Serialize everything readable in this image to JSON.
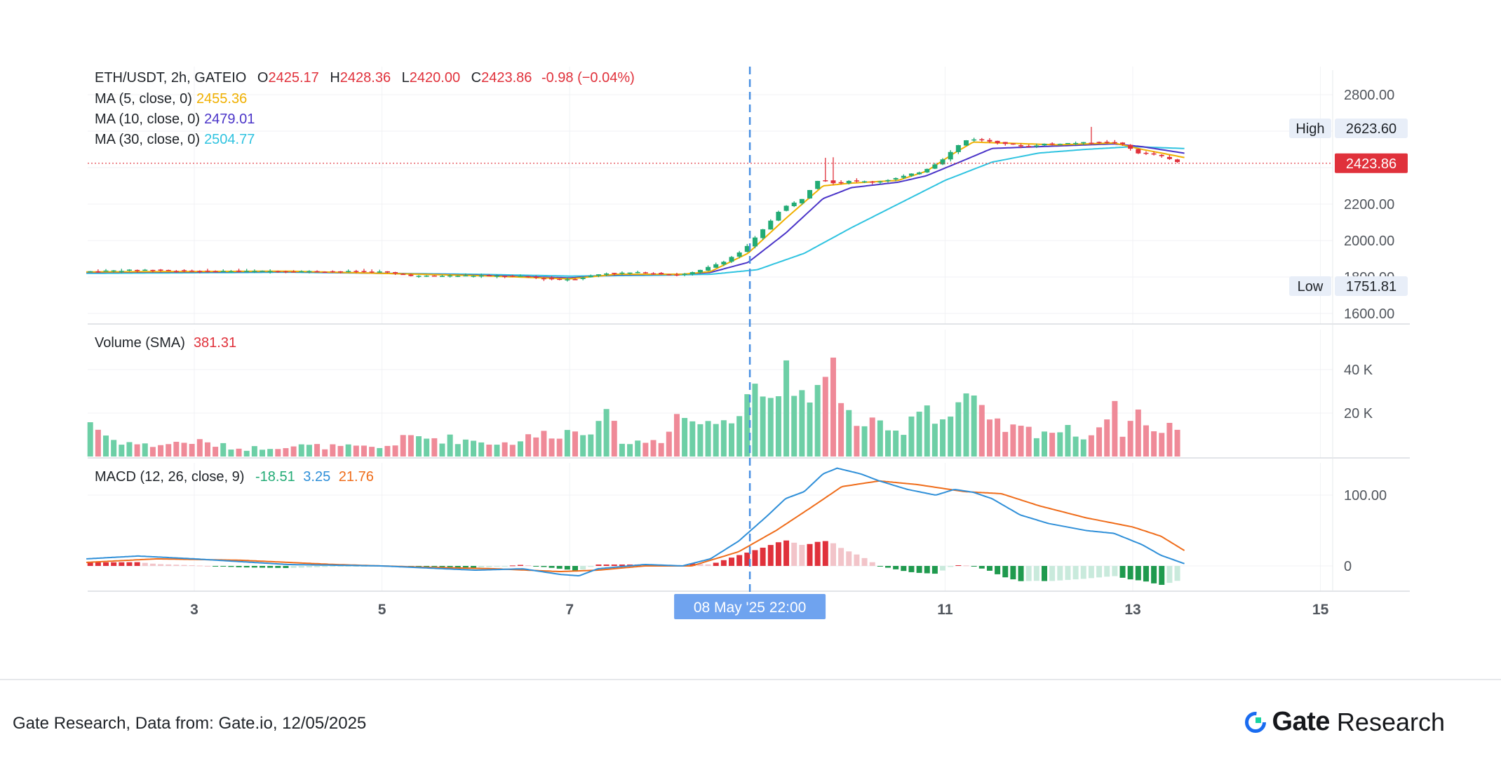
{
  "legend": {
    "symbol": "ETH/USDT, 2h, GATEIO",
    "open": "2425.17",
    "high": "2428.36",
    "low": "2420.00",
    "close": "2423.86",
    "change": "-0.98 (−0.04%)",
    "ma5_label": "MA (5, close, 0)",
    "ma5_value": "2455.36",
    "ma10_label": "MA (10, close, 0)",
    "ma10_value": "2479.01",
    "ma30_label": "MA (30, close, 0)",
    "ma30_value": "2504.77",
    "volume_label": "Volume (SMA)",
    "volume_value": "381.31",
    "macd_label": "MACD (12, 26, close, 9)",
    "macd_hist": "-18.51",
    "macd_line": "3.25",
    "macd_signal": "21.76"
  },
  "price_axis": {
    "ticks": [
      "2800.00",
      "2200.00",
      "2000.00",
      "1800.00",
      "1600.00"
    ],
    "high_label": "High",
    "high_value": "2623.60",
    "low_label": "Low",
    "low_value": "1751.81",
    "last_price": "2423.86"
  },
  "volume_axis": {
    "ticks": [
      "40 K",
      "20 K"
    ]
  },
  "macd_axis": {
    "ticks": [
      "100.00",
      "0"
    ]
  },
  "time_axis": {
    "ticks": [
      "3",
      "5",
      "7",
      "11",
      "13",
      "15"
    ],
    "crosshair_label": "08 May '25   22:00"
  },
  "footer": {
    "source": "Gate Research, Data from: Gate.io, 12/05/2025",
    "brand_name": "Gate",
    "brand_sub": "Research"
  },
  "colors": {
    "up": "#22ab75",
    "down": "#e0313b",
    "up_light": "#6dcfa6",
    "down_light": "#ef8a98",
    "ma5": "#f0b000",
    "ma10": "#4a34c8",
    "ma30": "#2fc3e0",
    "macd": "#2f8fd8",
    "signal": "#ef6c1a",
    "crosshair": "#4a90e2",
    "brand": "#1a6cf0"
  },
  "chart_data": {
    "type": "candlestick",
    "title": "ETH/USDT, 2h, GATEIO",
    "ylim": [
      1550,
      2900
    ],
    "x_range": [
      1.85,
      15.4
    ],
    "x_ticks": [
      3,
      5,
      7,
      11,
      13,
      15
    ],
    "crosshair_x": 8.92,
    "price_anchors": [
      [
        1.85,
        1830
      ],
      [
        2.5,
        1840
      ],
      [
        3.0,
        1832
      ],
      [
        4.0,
        1832
      ],
      [
        5.0,
        1830
      ],
      [
        5.4,
        1805
      ],
      [
        6.0,
        1808
      ],
      [
        6.5,
        1805
      ],
      [
        6.9,
        1785
      ],
      [
        7.1,
        1790
      ],
      [
        7.4,
        1820
      ],
      [
        7.8,
        1825
      ],
      [
        8.2,
        1810
      ],
      [
        8.4,
        1830
      ],
      [
        8.7,
        1890
      ],
      [
        8.9,
        1950
      ],
      [
        9.1,
        2060
      ],
      [
        9.3,
        2180
      ],
      [
        9.5,
        2220
      ],
      [
        9.6,
        2280
      ],
      [
        9.7,
        2340
      ],
      [
        9.9,
        2310
      ],
      [
        10.0,
        2330
      ],
      [
        10.3,
        2320
      ],
      [
        10.5,
        2340
      ],
      [
        10.8,
        2380
      ],
      [
        11.0,
        2440
      ],
      [
        11.2,
        2530
      ],
      [
        11.3,
        2560
      ],
      [
        11.5,
        2545
      ],
      [
        11.7,
        2530
      ],
      [
        11.9,
        2515
      ],
      [
        12.1,
        2530
      ],
      [
        12.4,
        2535
      ],
      [
        12.7,
        2540
      ],
      [
        12.9,
        2535
      ],
      [
        13.1,
        2480
      ],
      [
        13.3,
        2470
      ],
      [
        13.55,
        2423.86
      ]
    ],
    "ma5_anchors": [
      [
        1.85,
        1828
      ],
      [
        4.0,
        1832
      ],
      [
        6.0,
        1808
      ],
      [
        7.0,
        1790
      ],
      [
        7.5,
        1815
      ],
      [
        8.2,
        1815
      ],
      [
        8.5,
        1830
      ],
      [
        8.9,
        1930
      ],
      [
        9.3,
        2120
      ],
      [
        9.7,
        2300
      ],
      [
        10.0,
        2315
      ],
      [
        10.5,
        2330
      ],
      [
        10.8,
        2380
      ],
      [
        11.1,
        2480
      ],
      [
        11.3,
        2540
      ],
      [
        11.6,
        2535
      ],
      [
        12.2,
        2525
      ],
      [
        12.8,
        2535
      ],
      [
        13.1,
        2500
      ],
      [
        13.55,
        2455.36
      ]
    ],
    "ma10_anchors": [
      [
        1.85,
        1826
      ],
      [
        4.0,
        1830
      ],
      [
        6.0,
        1810
      ],
      [
        7.0,
        1795
      ],
      [
        7.5,
        1812
      ],
      [
        8.2,
        1815
      ],
      [
        8.5,
        1825
      ],
      [
        8.9,
        1880
      ],
      [
        9.3,
        2040
      ],
      [
        9.7,
        2230
      ],
      [
        10.0,
        2290
      ],
      [
        10.5,
        2320
      ],
      [
        10.8,
        2355
      ],
      [
        11.2,
        2440
      ],
      [
        11.5,
        2505
      ],
      [
        12.0,
        2515
      ],
      [
        12.8,
        2530
      ],
      [
        13.1,
        2515
      ],
      [
        13.55,
        2479.01
      ]
    ],
    "ma30_anchors": [
      [
        1.85,
        1820
      ],
      [
        4.0,
        1826
      ],
      [
        6.0,
        1815
      ],
      [
        7.0,
        1805
      ],
      [
        8.0,
        1810
      ],
      [
        8.5,
        1815
      ],
      [
        9.0,
        1840
      ],
      [
        9.5,
        1930
      ],
      [
        10.0,
        2070
      ],
      [
        10.5,
        2200
      ],
      [
        11.0,
        2330
      ],
      [
        11.5,
        2430
      ],
      [
        12.0,
        2480
      ],
      [
        12.5,
        2500
      ],
      [
        13.0,
        2515
      ],
      [
        13.55,
        2504.77
      ]
    ],
    "volume_anchors": [
      [
        1.85,
        18000
      ],
      [
        2.1,
        8000
      ],
      [
        2.5,
        5000
      ],
      [
        3.0,
        7000
      ],
      [
        3.5,
        3500
      ],
      [
        4.0,
        5000
      ],
      [
        4.5,
        4500
      ],
      [
        5.0,
        4000
      ],
      [
        5.3,
        9000
      ],
      [
        5.8,
        8000
      ],
      [
        6.3,
        6000
      ],
      [
        6.8,
        11000
      ],
      [
        7.2,
        12000
      ],
      [
        7.3,
        22000
      ],
      [
        7.6,
        6000
      ],
      [
        8.0,
        8000
      ],
      [
        8.1,
        20000
      ],
      [
        8.5,
        14000
      ],
      [
        8.8,
        24000
      ],
      [
        8.95,
        38000
      ],
      [
        9.1,
        22000
      ],
      [
        9.25,
        43000
      ],
      [
        9.4,
        22000
      ],
      [
        9.65,
        32000
      ],
      [
        9.75,
        54000
      ],
      [
        9.9,
        20000
      ],
      [
        10.1,
        16000
      ],
      [
        10.5,
        10000
      ],
      [
        10.75,
        26000
      ],
      [
        11.0,
        16000
      ],
      [
        11.2,
        28000
      ],
      [
        11.5,
        14000
      ],
      [
        11.8,
        12000
      ],
      [
        12.2,
        12000
      ],
      [
        12.6,
        10000
      ],
      [
        12.75,
        25000
      ],
      [
        12.9,
        12000
      ],
      [
        13.1,
        22000
      ],
      [
        13.25,
        9000
      ],
      [
        13.5,
        16000
      ]
    ],
    "volume_ylim": [
      0,
      55000
    ],
    "macd_anchors": [
      [
        1.85,
        10
      ],
      [
        2.4,
        14
      ],
      [
        3.0,
        10
      ],
      [
        4.0,
        2
      ],
      [
        5.0,
        0
      ],
      [
        6.0,
        -6
      ],
      [
        6.5,
        -4
      ],
      [
        6.9,
        -12
      ],
      [
        7.1,
        -14
      ],
      [
        7.3,
        -4
      ],
      [
        7.8,
        2
      ],
      [
        8.2,
        0
      ],
      [
        8.5,
        10
      ],
      [
        8.8,
        35
      ],
      [
        9.1,
        70
      ],
      [
        9.3,
        95
      ],
      [
        9.5,
        105
      ],
      [
        9.7,
        130
      ],
      [
        9.85,
        138
      ],
      [
        10.1,
        130
      ],
      [
        10.3,
        120
      ],
      [
        10.6,
        108
      ],
      [
        10.9,
        100
      ],
      [
        11.1,
        108
      ],
      [
        11.3,
        104
      ],
      [
        11.5,
        95
      ],
      [
        11.8,
        72
      ],
      [
        12.1,
        60
      ],
      [
        12.5,
        50
      ],
      [
        12.8,
        46
      ],
      [
        13.1,
        30
      ],
      [
        13.3,
        15
      ],
      [
        13.55,
        3.25
      ]
    ],
    "signal_anchors": [
      [
        1.85,
        5
      ],
      [
        2.6,
        10
      ],
      [
        3.5,
        8
      ],
      [
        4.5,
        2
      ],
      [
        5.5,
        -2
      ],
      [
        6.2,
        -4
      ],
      [
        6.9,
        -8
      ],
      [
        7.3,
        -6
      ],
      [
        7.8,
        0
      ],
      [
        8.3,
        0
      ],
      [
        8.8,
        20
      ],
      [
        9.2,
        50
      ],
      [
        9.6,
        85
      ],
      [
        9.9,
        112
      ],
      [
        10.3,
        120
      ],
      [
        10.7,
        115
      ],
      [
        11.2,
        105
      ],
      [
        11.6,
        102
      ],
      [
        12.0,
        85
      ],
      [
        12.5,
        68
      ],
      [
        13.0,
        55
      ],
      [
        13.3,
        42
      ],
      [
        13.55,
        21.76
      ]
    ],
    "macd_ylim": [
      -40,
      150
    ]
  }
}
